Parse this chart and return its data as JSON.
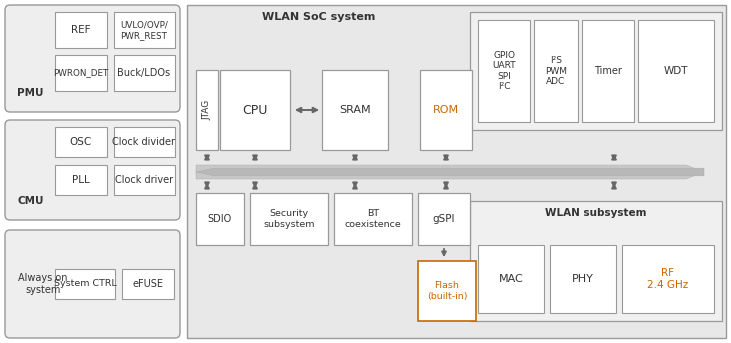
{
  "fig_w": 7.31,
  "fig_h": 3.43,
  "white": "#ffffff",
  "gray_bg": "#e8e8e8",
  "light_gray": "#eeeeee",
  "border": "#999999",
  "text_dark": "#333333",
  "text_blue": "#1a5fb4",
  "text_orange": "#cc6600",
  "arrow_col": "#666666",
  "pmu_label": "PMU",
  "cmu_label": "CMU",
  "always_on_label": "Always on\nsystem",
  "wlan_soc_label": "WLAN SoC system",
  "wlan_sub_label": "WLAN subsystem",
  "ref_label": "REF",
  "uvlo_label": "UVLO/OVP/\nPWR_REST",
  "pwron_label": "PWRON_DET",
  "buck_label": "Buck/LDOs",
  "osc_label": "OSC",
  "clkdiv_label": "Clock divider",
  "pll_label": "PLL",
  "clkdrv_label": "Clock driver",
  "sysctrl_label": "System CTRL",
  "efuse_label": "eFUSE",
  "jtag_label": "JTAG",
  "cpu_label": "CPU",
  "sram_label": "SRAM",
  "rom_label": "ROM",
  "gpio_label": "GPIO\nUART\nSPI\nI²C",
  "i2s_label": "I²S\nPWM\nADC",
  "timer_label": "Timer",
  "wdt_label": "WDT",
  "sdio_label": "SDIO",
  "security_label": "Security\nsubsystem",
  "bt_label": "BT\ncoexistence",
  "gspi_label": "gSPI",
  "flash_label": "Flash\n(built-in)",
  "mac_label": "MAC",
  "phy_label": "PHY",
  "rf_label": "RF\n2.4 GHz"
}
